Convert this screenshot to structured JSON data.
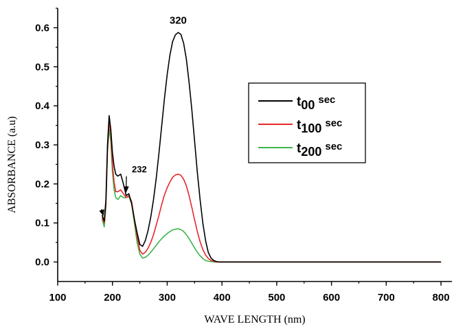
{
  "chart_data": {
    "type": "line",
    "title": "",
    "xlabel": "WAVE LENGTH (nm)",
    "ylabel": "ABSORBANCE (a.u)",
    "xlim": [
      100,
      820
    ],
    "ylim": [
      -0.05,
      0.65
    ],
    "xticks": [
      100,
      200,
      300,
      400,
      500,
      600,
      700,
      800
    ],
    "yticks": [
      0.0,
      0.1,
      0.2,
      0.3,
      0.4,
      0.5,
      0.6
    ],
    "ytick_labels": [
      "0.0",
      "0.1",
      "0.2",
      "0.3",
      "0.4",
      "0.5",
      "0.6"
    ],
    "grid": false,
    "legend_position": "right",
    "annotations": [
      {
        "text": "320",
        "x": 320,
        "y": 0.6,
        "arrow": false
      },
      {
        "text": "232",
        "x": 233,
        "y": 0.23,
        "arrow": true,
        "arrow_to": [
          225,
          0.18
        ]
      },
      {
        "text": "",
        "x": 180,
        "y": 0.135,
        "arrow": true,
        "arrow_to": [
          183,
          0.12
        ]
      }
    ],
    "series": [
      {
        "label_base": "t",
        "label_sub": "00",
        "label_sup": "sec",
        "color": "#000000",
        "x": [
          181,
          185,
          188,
          191,
          194,
          197,
          200,
          203,
          206,
          210,
          215,
          220,
          225,
          230,
          235,
          240,
          245,
          250,
          255,
          260,
          265,
          270,
          275,
          280,
          285,
          290,
          295,
          300,
          305,
          310,
          315,
          320,
          325,
          330,
          335,
          340,
          345,
          350,
          355,
          360,
          365,
          370,
          375,
          380,
          385,
          390,
          395,
          400,
          410,
          500,
          600,
          700,
          800
        ],
        "y": [
          0.12,
          0.105,
          0.16,
          0.3,
          0.375,
          0.34,
          0.28,
          0.245,
          0.225,
          0.22,
          0.225,
          0.2,
          0.17,
          0.175,
          0.15,
          0.11,
          0.075,
          0.045,
          0.04,
          0.055,
          0.08,
          0.115,
          0.16,
          0.215,
          0.28,
          0.35,
          0.42,
          0.48,
          0.53,
          0.565,
          0.582,
          0.588,
          0.583,
          0.56,
          0.52,
          0.46,
          0.39,
          0.31,
          0.23,
          0.16,
          0.1,
          0.055,
          0.025,
          0.01,
          0.004,
          0.001,
          0.0,
          0.0,
          0.0,
          0.0,
          0.0,
          0.0,
          0.0
        ]
      },
      {
        "label_base": "t",
        "label_sub": "100",
        "label_sup": "sec",
        "color": "#e8262b",
        "x": [
          181,
          185,
          188,
          191,
          194,
          197,
          200,
          203,
          206,
          210,
          215,
          220,
          225,
          230,
          235,
          240,
          245,
          250,
          255,
          260,
          265,
          270,
          275,
          280,
          285,
          290,
          295,
          300,
          305,
          310,
          315,
          320,
          325,
          330,
          335,
          340,
          345,
          350,
          355,
          360,
          365,
          370,
          375,
          380,
          385,
          390,
          395,
          400,
          410,
          500,
          600,
          700,
          800
        ],
        "y": [
          0.115,
          0.1,
          0.15,
          0.29,
          0.36,
          0.33,
          0.25,
          0.205,
          0.18,
          0.18,
          0.185,
          0.175,
          0.165,
          0.17,
          0.155,
          0.11,
          0.065,
          0.03,
          0.02,
          0.025,
          0.035,
          0.05,
          0.07,
          0.095,
          0.12,
          0.148,
          0.172,
          0.19,
          0.205,
          0.217,
          0.223,
          0.225,
          0.222,
          0.212,
          0.195,
          0.17,
          0.14,
          0.108,
          0.078,
          0.052,
          0.032,
          0.018,
          0.009,
          0.004,
          0.002,
          0.0,
          0.0,
          0.0,
          0.0,
          0.0,
          0.0,
          0.0,
          0.0
        ]
      },
      {
        "label_base": "t",
        "label_sub": "200",
        "label_sup": "sec",
        "color": "#3cb54a",
        "x": [
          181,
          185,
          188,
          191,
          194,
          197,
          200,
          203,
          206,
          210,
          215,
          220,
          225,
          230,
          235,
          240,
          245,
          250,
          255,
          260,
          265,
          270,
          275,
          280,
          285,
          290,
          295,
          300,
          305,
          310,
          315,
          320,
          325,
          330,
          335,
          340,
          345,
          350,
          355,
          360,
          365,
          370,
          375,
          380,
          385,
          390,
          395,
          400,
          410,
          500,
          600,
          700,
          800
        ],
        "y": [
          0.11,
          0.09,
          0.14,
          0.28,
          0.34,
          0.31,
          0.23,
          0.185,
          0.165,
          0.16,
          0.17,
          0.165,
          0.165,
          0.168,
          0.15,
          0.1,
          0.05,
          0.02,
          0.01,
          0.012,
          0.017,
          0.025,
          0.034,
          0.043,
          0.052,
          0.06,
          0.067,
          0.073,
          0.078,
          0.082,
          0.084,
          0.085,
          0.083,
          0.078,
          0.07,
          0.06,
          0.048,
          0.036,
          0.025,
          0.016,
          0.009,
          0.004,
          0.002,
          0.001,
          0.0,
          0.0,
          0.0,
          0.0,
          0.0,
          0.0,
          0.0,
          0.0,
          0.0
        ]
      }
    ]
  }
}
